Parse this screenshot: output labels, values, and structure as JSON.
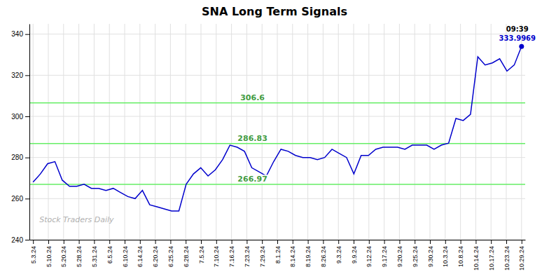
{
  "chart_data": {
    "type": "line",
    "title": "SNA Long Term Signals",
    "x": [
      0,
      1,
      2,
      3,
      4,
      5,
      6,
      7,
      8,
      9,
      10,
      11,
      12,
      13,
      14,
      15,
      16,
      17,
      18,
      19,
      20,
      21,
      22,
      23,
      24,
      25,
      26,
      27,
      28,
      29,
      30,
      31,
      32,
      33,
      34,
      35,
      36,
      37,
      38,
      39,
      40,
      41,
      42,
      43,
      44,
      45,
      46,
      47,
      48,
      49,
      50,
      51,
      52,
      53,
      54,
      55,
      56,
      57,
      58,
      59,
      60,
      61,
      62,
      63,
      64,
      65,
      66,
      67
    ],
    "values": [
      268,
      272,
      277,
      278,
      269,
      266,
      266,
      267,
      265,
      265,
      264,
      265,
      263,
      261,
      260,
      264,
      257,
      256,
      255,
      254,
      254,
      267,
      272,
      275,
      271,
      274,
      279,
      286,
      285,
      283,
      275,
      273,
      271,
      278,
      284,
      283,
      281,
      280,
      280,
      279,
      280,
      284,
      282,
      280,
      272,
      281,
      281,
      284,
      285,
      285,
      285,
      284,
      286,
      286,
      286,
      284,
      286,
      287,
      299,
      298,
      301,
      329,
      325,
      326,
      328,
      322,
      325,
      334
    ],
    "color": "#0000cc",
    "xlim": [
      -0.5,
      67.5
    ],
    "xticks": [
      {
        "value": 0,
        "label": "5.3.24"
      },
      {
        "value": 2.09375,
        "label": "5.10.24"
      },
      {
        "value": 4.1875,
        "label": "5.20.24"
      },
      {
        "value": 6.28125,
        "label": "5.28.24"
      },
      {
        "value": 8.375,
        "label": "5.31.24"
      },
      {
        "value": 10.46875,
        "label": "6.5.24"
      },
      {
        "value": 12.5625,
        "label": "6.10.24"
      },
      {
        "value": 14.65625,
        "label": "6.14.24"
      },
      {
        "value": 16.75,
        "label": "6.20.24"
      },
      {
        "value": 18.84375,
        "label": "6.25.24"
      },
      {
        "value": 20.9375,
        "label": "6.28.24"
      },
      {
        "value": 23.03125,
        "label": "7.5.24"
      },
      {
        "value": 25.125,
        "label": "7.10.24"
      },
      {
        "value": 27.21875,
        "label": "7.16.24"
      },
      {
        "value": 29.3125,
        "label": "7.23.24"
      },
      {
        "value": 31.40625,
        "label": "7.29.24"
      },
      {
        "value": 33.5,
        "label": "8.1.24"
      },
      {
        "value": 35.59375,
        "label": "8.14.24"
      },
      {
        "value": 37.6875,
        "label": "8.19.24"
      },
      {
        "value": 39.78125,
        "label": "8.26.24"
      },
      {
        "value": 41.875,
        "label": "9.3.24"
      },
      {
        "value": 43.96875,
        "label": "9.9.24"
      },
      {
        "value": 46.0625,
        "label": "9.12.24"
      },
      {
        "value": 48.15625,
        "label": "9.17.24"
      },
      {
        "value": 50.25,
        "label": "9.20.24"
      },
      {
        "value": 52.34375,
        "label": "9.25.24"
      },
      {
        "value": 54.4375,
        "label": "9.30.24"
      },
      {
        "value": 56.53125,
        "label": "10.3.24"
      },
      {
        "value": 58.625,
        "label": "10.8.24"
      },
      {
        "value": 60.71875,
        "label": "10.14.24"
      },
      {
        "value": 62.8125,
        "label": "10.17.24"
      },
      {
        "value": 64.90625,
        "label": "10.23.24"
      },
      {
        "value": 67,
        "label": "10.29.24"
      }
    ],
    "ylim": [
      240,
      345
    ],
    "yticks": [
      240,
      260,
      280,
      300,
      320,
      340
    ],
    "grid": true,
    "hlines": {
      "values": [
        266.97,
        286.83,
        306.6
      ],
      "labels": [
        "266.97",
        "286.83",
        "306.6"
      ],
      "color": "#66ee66"
    },
    "annotations": [
      {
        "text": "09:39",
        "x": 67,
        "y": 334
      },
      {
        "text": "333.9969",
        "x": 67,
        "y": 334
      },
      {
        "text": "Stock Traders Daily"
      }
    ]
  }
}
